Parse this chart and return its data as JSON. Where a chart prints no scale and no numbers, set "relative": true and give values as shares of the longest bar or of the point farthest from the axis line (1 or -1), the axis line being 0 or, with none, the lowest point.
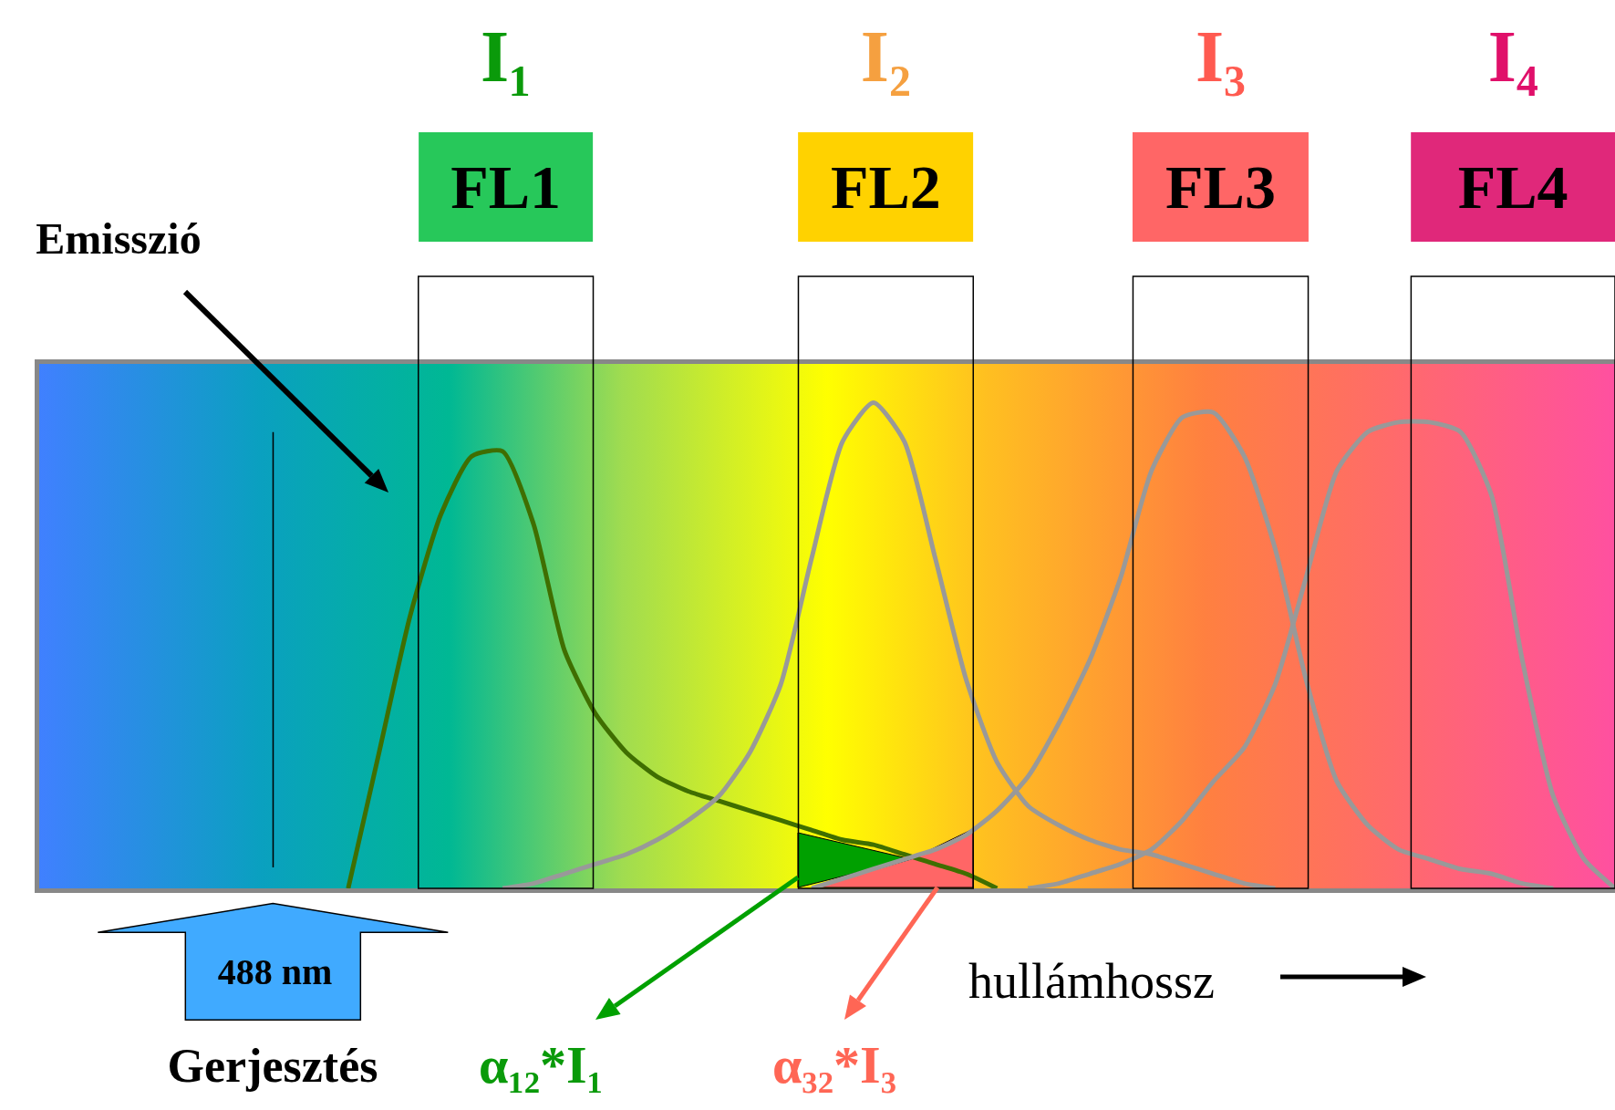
{
  "chart_data": {
    "type": "line",
    "relative": true,
    "legend": false,
    "tick_labels": false,
    "marker": "none",
    "line_style": "solid",
    "categories": [
      null,
      null,
      null,
      null,
      null,
      null,
      null,
      null,
      null,
      null,
      null,
      null,
      null,
      null,
      null,
      null,
      null,
      null,
      null,
      null,
      null,
      null,
      null,
      null,
      null,
      null,
      null,
      null,
      null,
      null,
      null,
      null,
      null,
      null,
      null,
      null,
      null,
      null,
      null,
      null,
      null,
      null,
      null,
      null,
      null,
      null,
      null,
      null,
      null,
      null,
      null,
      null
    ],
    "series": [
      {
        "color": "#3f6e00",
        "values": [
          null,
          null,
          null,
          null,
          null,
          null,
          null,
          null,
          null,
          null,
          0,
          0.28,
          0.56,
          0.77,
          0.89,
          0.9,
          0.75,
          0.49,
          0.36,
          0.28,
          0.23,
          0.2,
          0.18,
          0.16,
          0.14,
          0.12,
          0.1,
          0.09,
          0.07,
          0.05,
          0.03,
          0,
          null,
          null,
          null,
          null,
          null,
          null,
          null,
          null,
          null,
          null,
          null,
          null,
          null,
          null,
          null,
          null,
          null,
          null,
          null,
          null
        ]
      },
      {
        "color": "#999999",
        "values": [
          null,
          null,
          null,
          null,
          null,
          null,
          null,
          null,
          null,
          null,
          null,
          null,
          null,
          null,
          null,
          0,
          0.01,
          0.03,
          0.05,
          0.07,
          0.1,
          0.14,
          0.19,
          0.28,
          0.42,
          0.68,
          0.92,
          1,
          0.92,
          0.68,
          0.43,
          0.26,
          0.17,
          0.13,
          0.1,
          0.08,
          0.07,
          0.05,
          0.03,
          0.01,
          0,
          null,
          null,
          null,
          null,
          null,
          null,
          null,
          null,
          null,
          null,
          null
        ]
      },
      {
        "color": "#999999",
        "values": [
          null,
          null,
          null,
          null,
          null,
          null,
          null,
          null,
          null,
          null,
          null,
          null,
          null,
          null,
          null,
          null,
          null,
          null,
          null,
          null,
          null,
          null,
          null,
          null,
          null,
          0,
          0.02,
          0.04,
          0.06,
          0.08,
          0.11,
          0.16,
          0.23,
          0.34,
          0.47,
          0.64,
          0.86,
          0.97,
          0.98,
          0.89,
          0.7,
          0.43,
          0.22,
          0.13,
          0.08,
          0.06,
          0.04,
          0.03,
          0.01,
          0,
          null,
          null
        ]
      },
      {
        "color": "#999999",
        "values": [
          null,
          null,
          null,
          null,
          null,
          null,
          null,
          null,
          null,
          null,
          null,
          null,
          null,
          null,
          null,
          null,
          null,
          null,
          null,
          null,
          null,
          null,
          null,
          null,
          null,
          null,
          null,
          null,
          null,
          null,
          null,
          null,
          0,
          0.01,
          0.03,
          0.05,
          0.08,
          0.14,
          0.22,
          0.29,
          0.42,
          0.64,
          0.86,
          0.94,
          0.96,
          0.96,
          0.94,
          0.81,
          0.47,
          0.19,
          0.06,
          0
        ]
      }
    ],
    "annotations": [
      "I₁",
      "I₂",
      "I₃",
      "I₄",
      "FL1",
      "FL2",
      "FL3",
      "FL4",
      "Emisszió",
      "488 nm",
      "Gerjesztés",
      "hullámhossz",
      "α₁₂*I₁",
      "α₃₂*I₃"
    ]
  }
}
